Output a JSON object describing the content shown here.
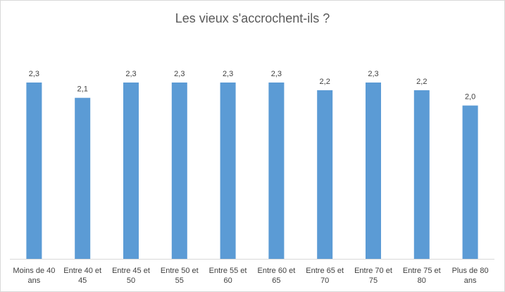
{
  "chart_data": {
    "type": "bar",
    "title": "Les vieux s'accrochent-ils ?",
    "categories": [
      [
        "Moins de 40",
        "ans"
      ],
      [
        "Entre 40 et",
        "45"
      ],
      [
        "Entre 45 et",
        "50"
      ],
      [
        "Entre 50 et",
        "55"
      ],
      [
        "Entre 55 et",
        "60"
      ],
      [
        "Entre 60 et",
        "65"
      ],
      [
        "Entre 65 et",
        "70"
      ],
      [
        "Entre 70 et",
        "75"
      ],
      [
        "Entre 75 et",
        "80"
      ],
      [
        "Plus de 80",
        "ans"
      ]
    ],
    "values": [
      2.3,
      2.1,
      2.3,
      2.3,
      2.3,
      2.3,
      2.2,
      2.3,
      2.2,
      2.0
    ],
    "value_labels": [
      "2,3",
      "2,1",
      "2,3",
      "2,3",
      "2,3",
      "2,3",
      "2,2",
      "2,3",
      "2,2",
      "2,0"
    ],
    "colors": {
      "bar": "#5b9bd5"
    },
    "legend": "none",
    "grid": false
  }
}
